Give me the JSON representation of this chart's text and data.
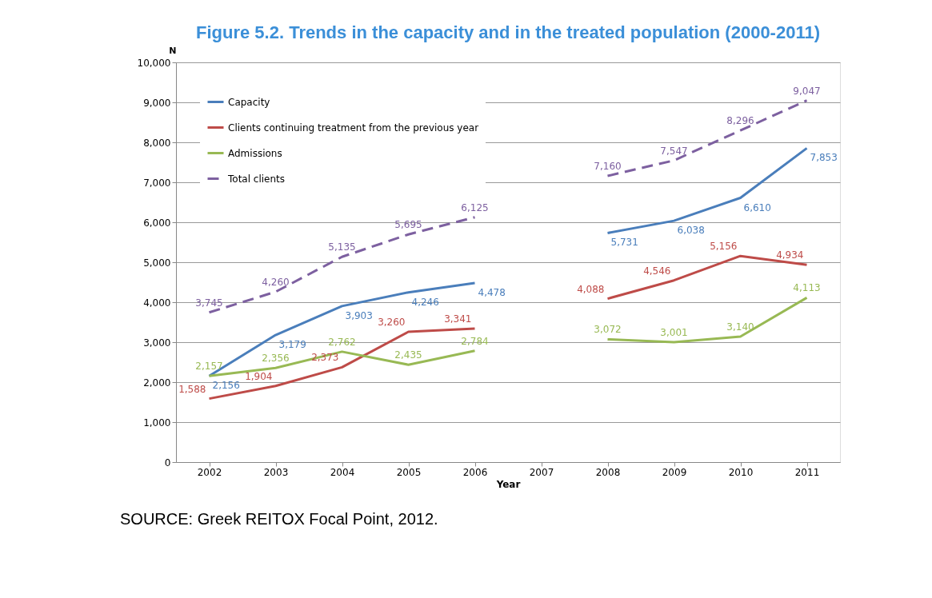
{
  "chart_data": {
    "type": "line",
    "title": "Figure 5.2. Trends in the capacity and in the treated population (2000-2011)",
    "xlabel": "Year",
    "ylabel": "N",
    "categories": [
      "2002",
      "2003",
      "2004",
      "2005",
      "2006",
      "2007",
      "2008",
      "2009",
      "2010",
      "2011"
    ],
    "series": [
      {
        "name": "Capacity",
        "color": "#4a7ebb",
        "values": [
          2156,
          3179,
          3903,
          4246,
          4478,
          null,
          5731,
          6038,
          6610,
          7853
        ],
        "value_labels": [
          "2,156",
          "3,179",
          "3,903",
          "4,246",
          "4,478",
          null,
          "5,731",
          "6,038",
          "6,610",
          "7,853"
        ]
      },
      {
        "name": "Clients continuing treatment from the previous year",
        "color": "#be4b48",
        "values": [
          1588,
          1904,
          2373,
          3260,
          3341,
          null,
          4088,
          4546,
          5156,
          4934
        ],
        "value_labels": [
          "1,588",
          "1,904",
          "2,373",
          "3,260",
          "3,341",
          null,
          "4,088",
          "4,546",
          "5,156",
          "4,934"
        ]
      },
      {
        "name": "Admissions",
        "color": "#98b954",
        "values": [
          2157,
          2356,
          2762,
          2435,
          2784,
          null,
          3072,
          3001,
          3140,
          4113
        ],
        "value_labels": [
          "2,157",
          "2,356",
          "2,762",
          "2,435",
          "2,784",
          null,
          "3,072",
          "3,001",
          "3,140",
          "4,113"
        ]
      },
      {
        "name": "Total clients",
        "color": "#7d60a0",
        "line_style": "dashed",
        "values": [
          3745,
          4260,
          5135,
          5695,
          6125,
          null,
          7160,
          7547,
          8296,
          9047
        ],
        "value_labels": [
          "3,745",
          "4,260",
          "5,135",
          "5,695",
          "6,125",
          null,
          "7,160",
          "7,547",
          "8,296",
          "9,047"
        ]
      }
    ],
    "ylim": [
      0,
      10000
    ],
    "yticks": [
      {
        "value": 0,
        "label": "0"
      },
      {
        "value": 1000,
        "label": "1,000"
      },
      {
        "value": 2000,
        "label": "2,000"
      },
      {
        "value": 3000,
        "label": "3,000"
      },
      {
        "value": 4000,
        "label": "4,000"
      },
      {
        "value": 5000,
        "label": "5,000"
      },
      {
        "value": 6000,
        "label": "6,000"
      },
      {
        "value": 7000,
        "label": "7,000"
      },
      {
        "value": 8000,
        "label": "8,000"
      },
      {
        "value": 9000,
        "label": "9,000"
      },
      {
        "value": 10000,
        "label": "10,000"
      }
    ],
    "grid": "y",
    "legend": "top left",
    "line_style": "solid",
    "data_labels": true,
    "annotations": [
      "SOURCE: Greek REITOX Focal Point, 2012."
    ]
  }
}
